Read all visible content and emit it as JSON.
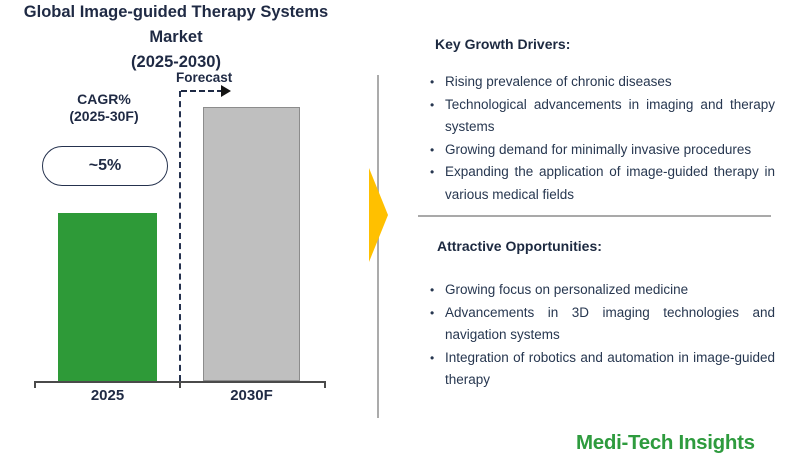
{
  "chart": {
    "title_line1": "Global Image-guided Therapy Systems Market",
    "title_line2": "(2025-2030)",
    "forecast_label": "Forecast",
    "cagr_label_line1": "CAGR%",
    "cagr_label_line2": "(2025-30F)",
    "cagr_value": "~5%",
    "bars": [
      {
        "label": "2025",
        "color": "#2E9A38"
      },
      {
        "label": "2030F",
        "color": "#BFBFBF"
      }
    ]
  },
  "chart_data": {
    "type": "bar",
    "title": "Global Image-guided Therapy Systems Market",
    "subtitle": "(2025-2030)",
    "categories": [
      "2025",
      "2030F"
    ],
    "series": [
      {
        "name": "Market size (relative, axis values not shown)",
        "values": [
          0.61,
          1.0
        ]
      }
    ],
    "bar_colors": [
      "#2E9A38",
      "#BFBFBF"
    ],
    "annotations": {
      "cagr_label": "CAGR% (2025-30F)",
      "cagr_value": "~5%",
      "forecast_label": "Forecast",
      "forecast_divider": "dashed vertical line between 2025 and 2030F bars"
    },
    "value_axis_shown": false,
    "grid": false,
    "legend": false
  },
  "right_panel": {
    "sections": [
      {
        "heading": "Key Growth Drivers:",
        "bullets": [
          "Rising prevalence of chronic diseases",
          "Technological advancements in imaging and therapy systems",
          "Growing demand for minimally invasive procedures",
          "Expanding the application of image-guided therapy in various medical fields"
        ]
      },
      {
        "heading": "Attractive Opportunities:",
        "bullets": [
          "Growing focus on personalized medicine",
          "Advancements in 3D imaging technologies and navigation systems",
          "Integration of robotics and automation in image-guided therapy"
        ]
      }
    ]
  },
  "brand": {
    "name": "Medi-Tech Insights",
    "color": "#2E9B3E"
  },
  "colors": {
    "text_navy": "#1F2A44",
    "bar_green": "#2E9A38",
    "bar_gray": "#BFBFBF",
    "arrow_yellow": "#FFC000",
    "divider_gray": "#A9A9A9",
    "axis_gray": "#4A4A4A"
  }
}
